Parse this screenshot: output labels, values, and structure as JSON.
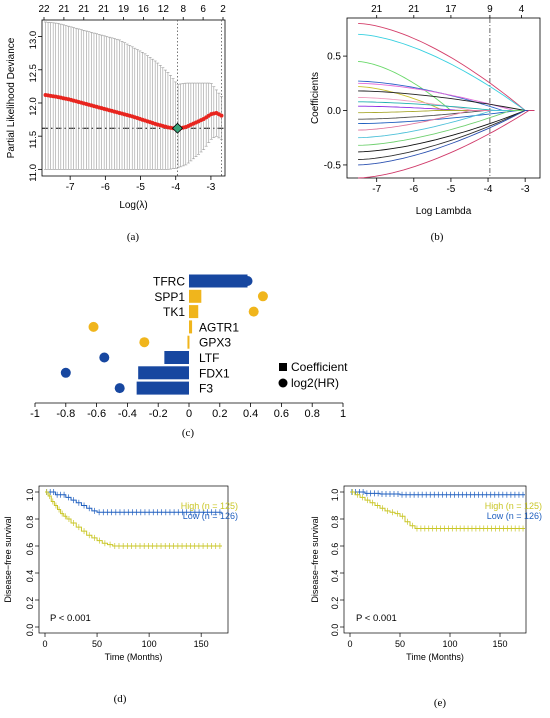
{
  "chart_data": [
    {
      "panel": "(a)",
      "type": "scatter",
      "ylabel": "Partial Likelihood Deviance",
      "xlabel": "Log(λ)",
      "xlim": [
        -7.8,
        -2.6
      ],
      "ylim": [
        10.9,
        13.25
      ],
      "x_ticks": [
        "-7",
        "-6",
        "-5",
        "-4",
        "-3"
      ],
      "y_ticks": [
        "11.0",
        "11.5",
        "12.0",
        "12.5",
        "13.0"
      ],
      "top_ticks": [
        "22",
        "21",
        "21",
        "21",
        "19",
        "16",
        "12",
        "8",
        "6",
        "2"
      ],
      "vlines": [
        -3.95,
        -2.7
      ],
      "hline": 11.62,
      "series": [
        {
          "x": [
            -7.7,
            -7.35,
            -7.0,
            -6.65,
            -6.3,
            -5.95,
            -5.6,
            -5.25,
            -4.9,
            -4.55,
            -4.2,
            -3.95,
            -3.7,
            -3.45,
            -3.2,
            -3.0,
            -2.85,
            -2.7
          ],
          "y": [
            12.12,
            12.09,
            12.05,
            12.0,
            11.95,
            11.9,
            11.85,
            11.8,
            11.74,
            11.68,
            11.63,
            11.61,
            11.64,
            11.7,
            11.76,
            11.83,
            11.85,
            11.81
          ],
          "err_low": [
            11.0,
            11.0,
            11.0,
            11.0,
            11.0,
            11.0,
            11.0,
            11.0,
            11.0,
            11.0,
            11.0,
            11.02,
            11.07,
            11.18,
            11.3,
            11.45,
            11.5,
            11.45
          ],
          "err_high": [
            13.22,
            13.2,
            13.15,
            13.1,
            13.05,
            13.0,
            12.95,
            12.85,
            12.75,
            12.62,
            12.45,
            12.28,
            12.3,
            12.3,
            12.3,
            12.3,
            12.2,
            12.1
          ]
        }
      ]
    },
    {
      "panel": "(b)",
      "type": "line",
      "ylabel": "Coefficients",
      "xlabel": "Log Lambda",
      "xlim": [
        -7.8,
        -2.6
      ],
      "ylim": [
        -0.62,
        0.85
      ],
      "x_ticks": [
        "-7",
        "-6",
        "-5",
        "-4",
        "-3"
      ],
      "y_ticks": [
        "-0.5",
        "0.0",
        "0.5"
      ],
      "top_ticks": [
        "21",
        "21",
        "17",
        "9",
        "4"
      ],
      "vline": -3.95,
      "series_colors": [
        "#d43f6a",
        "#38d0e0",
        "#6ad96a",
        "#2b63c9",
        "#e06bd9",
        "#c9c230",
        "#202020",
        "#f0a0c0",
        "#20b0b0",
        "#8a2be2",
        "#aaaa33",
        "#505050",
        "#1f5fbf",
        "#e07aa0",
        "#4fc1d9",
        "#70d070",
        "#101010",
        "#303030",
        "#2a50b0",
        "#d03a6a"
      ],
      "series_end_values": [
        0.8,
        0.7,
        0.45,
        0.27,
        0.25,
        0.22,
        0.18,
        0.12,
        0.08,
        0.04,
        -0.02,
        -0.08,
        -0.12,
        -0.18,
        -0.25,
        -0.32,
        -0.38,
        -0.45,
        -0.5,
        -0.62
      ]
    },
    {
      "panel": "(c)",
      "type": "bar",
      "categories": [
        "TFRC",
        "SPP1",
        "TK1",
        "AGTR1",
        "GPX3",
        "LTF",
        "FDX1",
        "F3"
      ],
      "coefficient": [
        0.38,
        0.08,
        0.06,
        0.02,
        -0.01,
        -0.16,
        -0.33,
        -0.34
      ],
      "log2HR": [
        0.38,
        0.48,
        0.42,
        -0.62,
        -0.29,
        -0.55,
        -0.8,
        -0.45
      ],
      "xlim": [
        -1,
        1
      ],
      "x_ticks": [
        "-1",
        "-0.8",
        "-0.6",
        "-0.4",
        "-0.2",
        "0",
        "0.2",
        "0.4",
        "0.6",
        "0.8",
        "1"
      ],
      "legend": [
        "Coefficient",
        "log2(HR)"
      ],
      "colors": {
        "positive": "#f0b51c",
        "negative": "#1747a0"
      }
    },
    {
      "panel": "(d)",
      "type": "line",
      "ylabel": "Disease−free survival",
      "xlabel": "Time (Months)",
      "xlim": [
        0,
        170
      ],
      "ylim": [
        0,
        1.0
      ],
      "x_ticks": [
        "0",
        "50",
        "100",
        "150"
      ],
      "y_ticks": [
        "0.0",
        "0.2",
        "0.4",
        "0.6",
        "0.8",
        "1.0"
      ],
      "annotation": "P < 0.001",
      "series": [
        {
          "name": "High (n = 125)",
          "color": "#c9c626",
          "x": [
            0,
            3,
            6,
            9,
            12,
            15,
            18,
            21,
            25,
            30,
            35,
            40,
            45,
            50,
            55,
            60,
            65,
            170
          ],
          "y": [
            1.0,
            0.97,
            0.93,
            0.9,
            0.87,
            0.84,
            0.82,
            0.8,
            0.77,
            0.74,
            0.71,
            0.68,
            0.66,
            0.64,
            0.62,
            0.61,
            0.6,
            0.6
          ]
        },
        {
          "name": "Low (n = 126)",
          "color": "#1f5fbf",
          "x": [
            0,
            10,
            20,
            25,
            30,
            35,
            40,
            45,
            50,
            170
          ],
          "y": [
            1.0,
            0.98,
            0.96,
            0.94,
            0.92,
            0.9,
            0.88,
            0.86,
            0.85,
            0.85
          ]
        }
      ]
    },
    {
      "panel": "(e)",
      "type": "line",
      "ylabel": "Disease−free survival",
      "xlabel": "Time (Months)",
      "xlim": [
        0,
        170
      ],
      "ylim": [
        0,
        1.0
      ],
      "x_ticks": [
        "0",
        "50",
        "100",
        "150"
      ],
      "y_ticks": [
        "0.0",
        "0.2",
        "0.4",
        "0.6",
        "0.8",
        "1.0"
      ],
      "annotation": "P < 0.001",
      "series": [
        {
          "name": "High (n = 125)",
          "color": "#c9c626",
          "x": [
            0,
            5,
            10,
            15,
            20,
            25,
            30,
            35,
            40,
            45,
            50,
            55,
            60,
            65,
            175
          ],
          "y": [
            1.0,
            0.98,
            0.96,
            0.94,
            0.92,
            0.9,
            0.88,
            0.86,
            0.85,
            0.84,
            0.82,
            0.78,
            0.75,
            0.73,
            0.73
          ]
        },
        {
          "name": "Low (n = 126)",
          "color": "#1f5fbf",
          "x": [
            0,
            15,
            30,
            50,
            175
          ],
          "y": [
            1.0,
            0.99,
            0.985,
            0.98,
            0.98
          ]
        }
      ]
    }
  ],
  "panel_labels": [
    "(a)",
    "(b)",
    "(c)",
    "(d)",
    "(e)"
  ]
}
